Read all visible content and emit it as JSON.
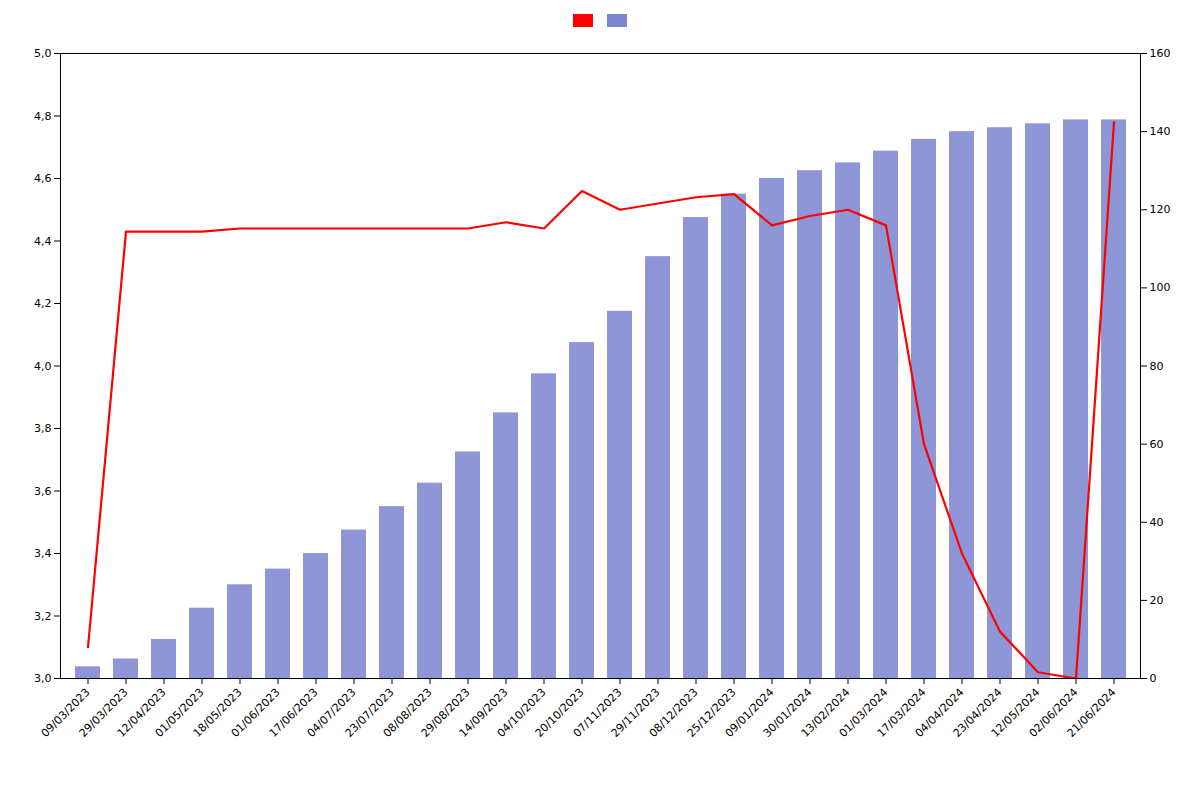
{
  "chart_data": {
    "type": "bar",
    "categories": [
      "09/03/2023",
      "29/03/2023",
      "12/04/2023",
      "01/05/2023",
      "18/05/2023",
      "01/06/2023",
      "17/06/2023",
      "04/07/2023",
      "23/07/2023",
      "08/08/2023",
      "29/08/2023",
      "14/09/2023",
      "04/10/2023",
      "20/10/2023",
      "07/11/2023",
      "29/11/2023",
      "08/12/2023",
      "25/12/2023",
      "09/01/2024",
      "30/01/2024",
      "13/02/2024",
      "01/03/2024",
      "17/03/2024",
      "04/04/2024",
      "23/04/2024",
      "12/05/2024",
      "02/06/2024",
      "21/06/2024"
    ],
    "series": [
      {
        "type": "line",
        "color": "#FF0000",
        "values": [
          3.1,
          4.43,
          4.43,
          4.43,
          4.44,
          4.44,
          4.44,
          4.44,
          4.44,
          4.44,
          4.44,
          4.46,
          4.44,
          4.56,
          4.5,
          4.52,
          4.54,
          4.55,
          4.45,
          4.48,
          4.5,
          4.45,
          3.75,
          3.4,
          3.15,
          3.02,
          3.0,
          4.78
        ]
      },
      {
        "type": "bar",
        "color": "#7B84D0",
        "axis": "y2",
        "values": [
          3,
          5,
          10,
          18,
          24,
          28,
          32,
          38,
          44,
          50,
          58,
          68,
          78,
          86,
          94,
          108,
          118,
          124,
          128,
          130,
          132,
          135,
          138,
          140,
          141,
          142,
          143,
          143
        ]
      }
    ],
    "ylim": [
      3.0,
      5.0
    ],
    "yticks": [
      {
        "value": 3.0,
        "label": "3,0"
      },
      {
        "value": 3.2,
        "label": "3,2"
      },
      {
        "value": 3.4,
        "label": "3,4"
      },
      {
        "value": 3.6,
        "label": "3,6"
      },
      {
        "value": 3.8,
        "label": "3,8"
      },
      {
        "value": 4.0,
        "label": "4,0"
      },
      {
        "value": 4.2,
        "label": "4,2"
      },
      {
        "value": 4.4,
        "label": "4,4"
      },
      {
        "value": 4.6,
        "label": "4,6"
      },
      {
        "value": 4.8,
        "label": "4,8"
      },
      {
        "value": 5.0,
        "label": "5,0"
      }
    ],
    "y2lim": [
      0,
      160
    ],
    "y2ticks": [
      0,
      20,
      40,
      60,
      80,
      100,
      120,
      140,
      160
    ],
    "grid": false,
    "legend": "upper center"
  }
}
